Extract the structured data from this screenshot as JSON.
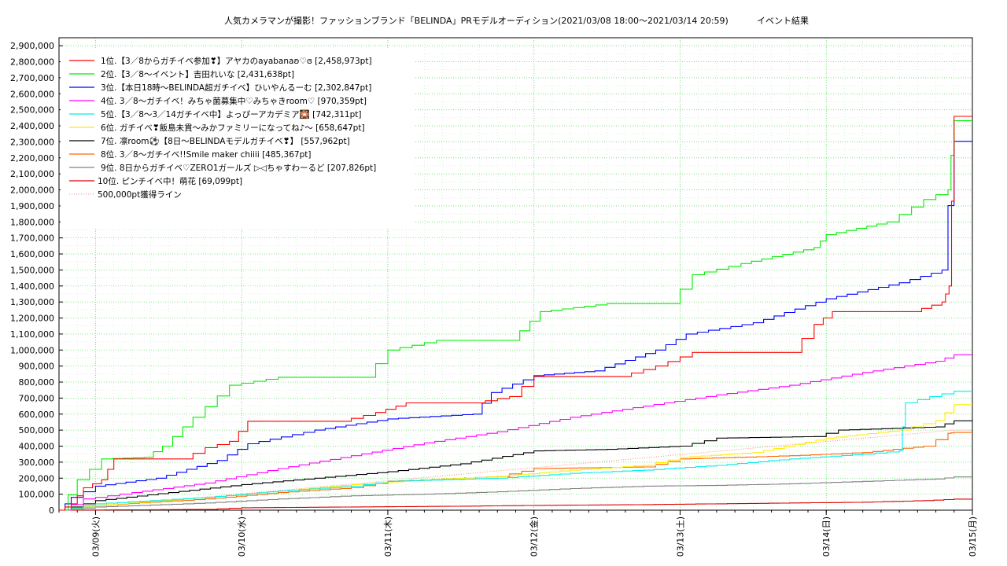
{
  "chart_data": {
    "type": "line",
    "title": "人気カメラマンが撮影！ファッションブランド「BELINDA」PRモデルオーディション(2021/03/08 18:00～2021/03/14 20:59)",
    "subtitle": "イベント結果",
    "xlabel": "",
    "ylabel": "",
    "x_range": [
      "2021-03-08 18:00",
      "2021-03-15 00:00"
    ],
    "ylim": [
      0,
      2950000
    ],
    "x_ticks": [
      {
        "x": "2021-03-09 00:00",
        "label": "03/09(火)"
      },
      {
        "x": "2021-03-10 00:00",
        "label": "03/10(水)"
      },
      {
        "x": "2021-03-11 00:00",
        "label": "03/11(木)"
      },
      {
        "x": "2021-03-12 00:00",
        "label": "03/12(金)"
      },
      {
        "x": "2021-03-13 00:00",
        "label": "03/13(土)"
      },
      {
        "x": "2021-03-14 00:00",
        "label": "03/14(日)"
      },
      {
        "x": "2021-03-15 00:00",
        "label": "03/15(月)"
      }
    ],
    "y_ticks": [
      {
        "v": 0,
        "label": "0"
      },
      {
        "v": 100000,
        "label": "100,000"
      },
      {
        "v": 200000,
        "label": "200,000"
      },
      {
        "v": 300000,
        "label": "300,000"
      },
      {
        "v": 400000,
        "label": "400,000"
      },
      {
        "v": 500000,
        "label": "500,000"
      },
      {
        "v": 600000,
        "label": "600,000"
      },
      {
        "v": 700000,
        "label": "700,000"
      },
      {
        "v": 800000,
        "label": "800,000"
      },
      {
        "v": 900000,
        "label": "900,000"
      },
      {
        "v": 1000000,
        "label": "1,000,000"
      },
      {
        "v": 1100000,
        "label": "1,100,000"
      },
      {
        "v": 1200000,
        "label": "1,200,000"
      },
      {
        "v": 1300000,
        "label": "1,300,000"
      },
      {
        "v": 1400000,
        "label": "1,400,000"
      },
      {
        "v": 1500000,
        "label": "1,500,000"
      },
      {
        "v": 1600000,
        "label": "1,600,000"
      },
      {
        "v": 1700000,
        "label": "1,700,000"
      },
      {
        "v": 1800000,
        "label": "1,800,000"
      },
      {
        "v": 1900000,
        "label": "1,900,000"
      },
      {
        "v": 2000000,
        "label": "2,000,000"
      },
      {
        "v": 2100000,
        "label": "2,100,000"
      },
      {
        "v": 2200000,
        "label": "2,200,000"
      },
      {
        "v": 2300000,
        "label": "2,300,000"
      },
      {
        "v": 2400000,
        "label": "2,400,000"
      },
      {
        "v": 2500000,
        "label": "2,500,000"
      },
      {
        "v": 2600000,
        "label": "2,600,000"
      },
      {
        "v": 2700000,
        "label": "2,700,000"
      },
      {
        "v": 2800000,
        "label": "2,800,000"
      },
      {
        "v": 2900000,
        "label": "2,900,000"
      }
    ],
    "grid": true,
    "legend_position": "top-left",
    "series": [
      {
        "name": "1位.【3／8からガチイベ参加❣】アヤカのayabanaʚ♡ɞ [2,458,973pt]",
        "color": "#ff0000",
        "points": [
          [
            "2021-03-08 18:00",
            0
          ],
          [
            "2021-03-08 20:00",
            40000
          ],
          [
            "2021-03-08 22:00",
            140000
          ],
          [
            "2021-03-09 01:00",
            190000
          ],
          [
            "2021-03-09 03:00",
            320000
          ],
          [
            "2021-03-09 14:00",
            320000
          ],
          [
            "2021-03-09 18:00",
            390000
          ],
          [
            "2021-03-09 22:00",
            430000
          ],
          [
            "2021-03-10 01:00",
            555000
          ],
          [
            "2021-03-10 16:00",
            555000
          ],
          [
            "2021-03-10 22:00",
            610000
          ],
          [
            "2021-03-11 03:00",
            670000
          ],
          [
            "2021-03-11 14:00",
            670000
          ],
          [
            "2021-03-11 20:00",
            710000
          ],
          [
            "2021-03-12 00:00",
            835000
          ],
          [
            "2021-03-12 14:00",
            835000
          ],
          [
            "2021-03-12 20:00",
            900000
          ],
          [
            "2021-03-13 02:00",
            985000
          ],
          [
            "2021-03-13 18:00",
            985000
          ],
          [
            "2021-03-13 22:00",
            1160000
          ],
          [
            "2021-03-14 01:00",
            1240000
          ],
          [
            "2021-03-14 14:00",
            1240000
          ],
          [
            "2021-03-14 19:00",
            1300000
          ],
          [
            "2021-03-14 20:10",
            1400000
          ],
          [
            "2021-03-14 20:59",
            2458973
          ],
          [
            "2021-03-15 00:00",
            2458973
          ]
        ]
      },
      {
        "name": "2位.【3／8～イベント】吉田れいな [2,431,638pt]",
        "color": "#00ee00",
        "points": [
          [
            "2021-03-08 18:00",
            0
          ],
          [
            "2021-03-08 21:00",
            190000
          ],
          [
            "2021-03-09 01:00",
            320000
          ],
          [
            "2021-03-09 08:00",
            330000
          ],
          [
            "2021-03-09 11:00",
            400000
          ],
          [
            "2021-03-09 16:00",
            580000
          ],
          [
            "2021-03-09 22:00",
            780000
          ],
          [
            "2021-03-10 06:00",
            830000
          ],
          [
            "2021-03-10 20:00",
            830000
          ],
          [
            "2021-03-11 00:00",
            1000000
          ],
          [
            "2021-03-11 08:00",
            1060000
          ],
          [
            "2021-03-11 20:00",
            1060000
          ],
          [
            "2021-03-12 01:00",
            1240000
          ],
          [
            "2021-03-12 12:00",
            1290000
          ],
          [
            "2021-03-12 22:00",
            1290000
          ],
          [
            "2021-03-13 02:00",
            1470000
          ],
          [
            "2021-03-13 10:00",
            1540000
          ],
          [
            "2021-03-13 22:00",
            1640000
          ],
          [
            "2021-03-14 00:00",
            1720000
          ],
          [
            "2021-03-14 10:00",
            1800000
          ],
          [
            "2021-03-14 16:00",
            1940000
          ],
          [
            "2021-03-14 20:00",
            2000000
          ],
          [
            "2021-03-14 20:59",
            2431638
          ],
          [
            "2021-03-15 00:00",
            2431638
          ]
        ]
      },
      {
        "name": "3位.【本日18時～BELINDA超ガチイベ】ひいやんるーむ [2,302,847pt]",
        "color": "#0000ff",
        "points": [
          [
            "2021-03-08 18:00",
            0
          ],
          [
            "2021-03-08 20:00",
            80000
          ],
          [
            "2021-03-09 00:00",
            150000
          ],
          [
            "2021-03-09 10:00",
            200000
          ],
          [
            "2021-03-09 20:00",
            310000
          ],
          [
            "2021-03-10 01:00",
            415000
          ],
          [
            "2021-03-10 12:00",
            500000
          ],
          [
            "2021-03-11 00:00",
            570000
          ],
          [
            "2021-03-11 14:00",
            600000
          ],
          [
            "2021-03-11 17:00",
            735000
          ],
          [
            "2021-03-12 00:00",
            840000
          ],
          [
            "2021-03-12 10:00",
            870000
          ],
          [
            "2021-03-12 20:00",
            1000000
          ],
          [
            "2021-03-13 01:00",
            1100000
          ],
          [
            "2021-03-13 12:00",
            1170000
          ],
          [
            "2021-03-14 00:00",
            1320000
          ],
          [
            "2021-03-14 12:00",
            1420000
          ],
          [
            "2021-03-14 19:00",
            1500000
          ],
          [
            "2021-03-14 20:59",
            2302847
          ],
          [
            "2021-03-15 00:00",
            2302847
          ]
        ]
      },
      {
        "name": "4位. 3／8～ガチイベ！みちゃ菌募集中♡みちゃきroom♡ [970,359pt]",
        "color": "#ff00ff",
        "points": [
          [
            "2021-03-08 18:00",
            0
          ],
          [
            "2021-03-08 22:00",
            70000
          ],
          [
            "2021-03-09 06:00",
            110000
          ],
          [
            "2021-03-09 18:00",
            170000
          ],
          [
            "2021-03-10 06:00",
            260000
          ],
          [
            "2021-03-10 18:00",
            340000
          ],
          [
            "2021-03-11 06:00",
            420000
          ],
          [
            "2021-03-11 18:00",
            490000
          ],
          [
            "2021-03-12 06:00",
            580000
          ],
          [
            "2021-03-12 18:00",
            650000
          ],
          [
            "2021-03-13 06:00",
            720000
          ],
          [
            "2021-03-13 18:00",
            780000
          ],
          [
            "2021-03-14 06:00",
            860000
          ],
          [
            "2021-03-14 18:00",
            930000
          ],
          [
            "2021-03-14 20:59",
            970359
          ],
          [
            "2021-03-15 00:00",
            970359
          ]
        ]
      },
      {
        "name": "5位.【3／8～3／14ガチイベ中】よっぴーアカデミア🎇 [742,311pt]",
        "color": "#00eeee",
        "points": [
          [
            "2021-03-08 18:00",
            0
          ],
          [
            "2021-03-09 00:00",
            40000
          ],
          [
            "2021-03-09 18:00",
            80000
          ],
          [
            "2021-03-10 06:00",
            120000
          ],
          [
            "2021-03-10 18:00",
            150000
          ],
          [
            "2021-03-11 00:00",
            180000
          ],
          [
            "2021-03-11 18:00",
            200000
          ],
          [
            "2021-03-12 06:00",
            230000
          ],
          [
            "2021-03-12 18:00",
            250000
          ],
          [
            "2021-03-13 06:00",
            280000
          ],
          [
            "2021-03-13 18:00",
            320000
          ],
          [
            "2021-03-14 06:00",
            350000
          ],
          [
            "2021-03-14 12:00",
            370000
          ],
          [
            "2021-03-14 13:00",
            670000
          ],
          [
            "2021-03-14 17:00",
            710000
          ],
          [
            "2021-03-14 20:59",
            742311
          ],
          [
            "2021-03-15 00:00",
            742311
          ]
        ]
      },
      {
        "name": "6位. ガチイベ❣飯島未貫～みかファミリーになってね♪～ [658,647pt]",
        "color": "#ffee00",
        "points": [
          [
            "2021-03-08 18:00",
            0
          ],
          [
            "2021-03-09 00:00",
            30000
          ],
          [
            "2021-03-09 18:00",
            80000
          ],
          [
            "2021-03-10 06:00",
            120000
          ],
          [
            "2021-03-10 18:00",
            160000
          ],
          [
            "2021-03-11 06:00",
            190000
          ],
          [
            "2021-03-11 18:00",
            210000
          ],
          [
            "2021-03-12 06:00",
            250000
          ],
          [
            "2021-03-12 18:00",
            280000
          ],
          [
            "2021-03-13 00:00",
            330000
          ],
          [
            "2021-03-13 12:00",
            360000
          ],
          [
            "2021-03-14 00:00",
            450000
          ],
          [
            "2021-03-14 12:00",
            500000
          ],
          [
            "2021-03-14 18:00",
            560000
          ],
          [
            "2021-03-14 20:59",
            658647
          ],
          [
            "2021-03-15 00:00",
            658647
          ]
        ]
      },
      {
        "name": "7位. 凛room⚽【8日～BELINDAモデルガチイベ❣】 [557,962pt]",
        "color": "#000000",
        "points": [
          [
            "2021-03-08 18:00",
            0
          ],
          [
            "2021-03-09 00:00",
            60000
          ],
          [
            "2021-03-09 12:00",
            110000
          ],
          [
            "2021-03-10 00:00",
            160000
          ],
          [
            "2021-03-10 12:00",
            200000
          ],
          [
            "2021-03-11 00:00",
            240000
          ],
          [
            "2021-03-11 12:00",
            290000
          ],
          [
            "2021-03-12 00:00",
            370000
          ],
          [
            "2021-03-12 12:00",
            380000
          ],
          [
            "2021-03-13 00:00",
            400000
          ],
          [
            "2021-03-13 06:00",
            450000
          ],
          [
            "2021-03-13 22:00",
            460000
          ],
          [
            "2021-03-14 02:00",
            500000
          ],
          [
            "2021-03-14 18:00",
            520000
          ],
          [
            "2021-03-14 20:59",
            557962
          ],
          [
            "2021-03-15 00:00",
            557962
          ]
        ]
      },
      {
        "name": "8位. 3／8～ガチイベ!!Smile maker chiiii [485,367pt]",
        "color": "#ff6600",
        "points": [
          [
            "2021-03-08 18:00",
            0
          ],
          [
            "2021-03-09 00:00",
            30000
          ],
          [
            "2021-03-09 18:00",
            70000
          ],
          [
            "2021-03-10 06:00",
            110000
          ],
          [
            "2021-03-10 18:00",
            140000
          ],
          [
            "2021-03-11 00:00",
            180000
          ],
          [
            "2021-03-11 18:00",
            210000
          ],
          [
            "2021-03-12 00:00",
            260000
          ],
          [
            "2021-03-12 18:00",
            270000
          ],
          [
            "2021-03-13 00:00",
            320000
          ],
          [
            "2021-03-13 18:00",
            340000
          ],
          [
            "2021-03-14 06:00",
            360000
          ],
          [
            "2021-03-14 16:00",
            400000
          ],
          [
            "2021-03-14 20:00",
            480000
          ],
          [
            "2021-03-14 20:59",
            485367
          ],
          [
            "2021-03-15 00:00",
            485367
          ]
        ]
      },
      {
        "name": "9位. 8日からガチイベ♡ZERO1ガールズ ▷◁ちゃすわーるど [207,826pt]",
        "color": "#808080",
        "points": [
          [
            "2021-03-08 18:00",
            0
          ],
          [
            "2021-03-09 00:00",
            20000
          ],
          [
            "2021-03-09 18:00",
            45000
          ],
          [
            "2021-03-10 06:00",
            70000
          ],
          [
            "2021-03-10 18:00",
            90000
          ],
          [
            "2021-03-11 06:00",
            100000
          ],
          [
            "2021-03-11 18:00",
            115000
          ],
          [
            "2021-03-12 06:00",
            135000
          ],
          [
            "2021-03-12 18:00",
            150000
          ],
          [
            "2021-03-13 06:00",
            155000
          ],
          [
            "2021-03-13 18:00",
            165000
          ],
          [
            "2021-03-14 06:00",
            180000
          ],
          [
            "2021-03-14 18:00",
            195000
          ],
          [
            "2021-03-14 20:59",
            207826
          ],
          [
            "2021-03-15 00:00",
            207826
          ]
        ]
      },
      {
        "name": "10位. ピンチイベ中！萌花 [69,099pt]",
        "color": "#dd0000",
        "points": [
          [
            "2021-03-08 18:00",
            0
          ],
          [
            "2021-03-09 18:00",
            5000
          ],
          [
            "2021-03-10 00:00",
            15000
          ],
          [
            "2021-03-10 18:00",
            20000
          ],
          [
            "2021-03-11 12:00",
            25000
          ],
          [
            "2021-03-12 00:00",
            30000
          ],
          [
            "2021-03-12 18:00",
            35000
          ],
          [
            "2021-03-13 06:00",
            40000
          ],
          [
            "2021-03-13 18:00",
            45000
          ],
          [
            "2021-03-14 06:00",
            50000
          ],
          [
            "2021-03-14 16:00",
            60000
          ],
          [
            "2021-03-14 20:59",
            69099
          ],
          [
            "2021-03-15 00:00",
            69099
          ]
        ]
      }
    ],
    "reference_lines": [
      {
        "name": "500,000pt獲得ライン",
        "color": "#ff8888",
        "style": "dotted",
        "points": [
          [
            "2021-03-08 18:00",
            0
          ],
          [
            "2021-03-14 20:59",
            500000
          ],
          [
            "2021-03-15 00:00",
            500000
          ]
        ]
      }
    ]
  }
}
